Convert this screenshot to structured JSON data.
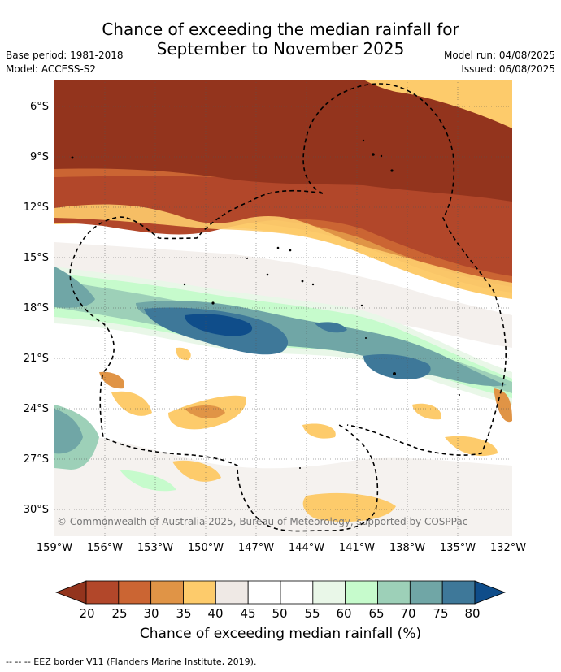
{
  "title_line1": "Chance of exceeding the median rainfall for",
  "title_line2": "September to November 2025",
  "meta_left": [
    "Base period: 1981-2018",
    "Model: ACCESS-S2"
  ],
  "meta_right": [
    "Model run: 04/08/2025",
    "Issued: 06/08/2025"
  ],
  "y_ticks": [
    "6°S",
    "9°S",
    "12°S",
    "15°S",
    "18°S",
    "21°S",
    "24°S",
    "27°S",
    "30°S"
  ],
  "x_ticks": [
    "159°W",
    "156°W",
    "153°W",
    "150°W",
    "147°W",
    "144°W",
    "141°W",
    "138°W",
    "135°W",
    "132°W"
  ],
  "copyright": "© Commonwealth of Australia 2025, Bureau of Meteorology, supported by COSPPac",
  "colorbar": {
    "ticks": [
      "20",
      "25",
      "30",
      "35",
      "40",
      "45",
      "50",
      "55",
      "60",
      "65",
      "70",
      "75",
      "80"
    ],
    "colors": [
      "#93341d",
      "#b2472a",
      "#cb6533",
      "#e09446",
      "#fdcb6b",
      "#efe9e5",
      "#ffffff",
      "#ffffff",
      "#e9f7e8",
      "#c6fbcc",
      "#9dd0b8",
      "#70a6a6",
      "#3e7899",
      "#0f4d8a"
    ],
    "label": "Chance of exceeding median rainfall (%)"
  },
  "eez_note": "--  --  -- EEZ border V11 (Flanders Marine Institute, 2019)."
}
